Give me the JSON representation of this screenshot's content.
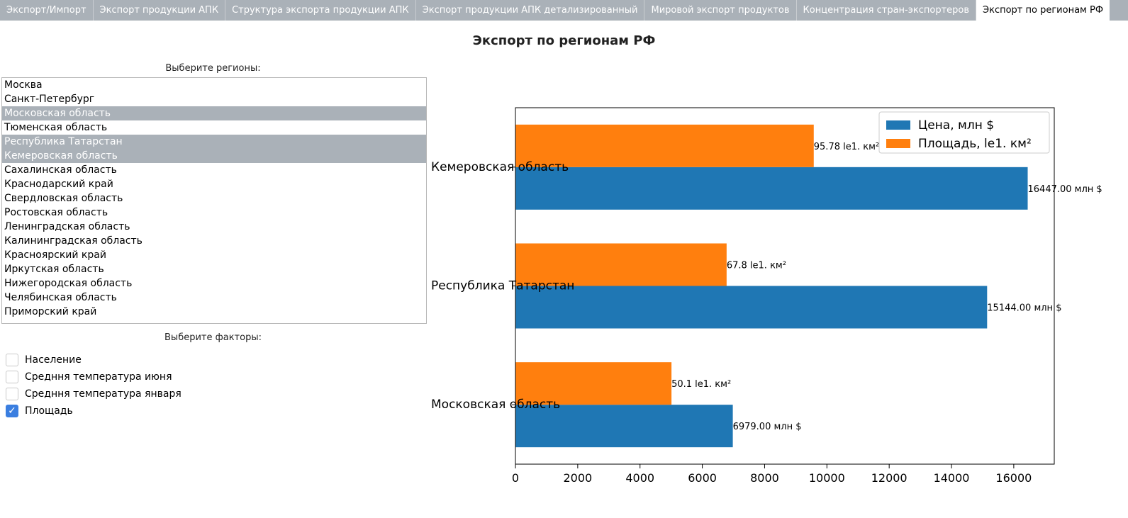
{
  "tabs": [
    {
      "label": "Экспорт/Импорт",
      "active": false
    },
    {
      "label": "Экспорт продукции АПК",
      "active": false
    },
    {
      "label": "Структура экспорта продукции АПК",
      "active": false
    },
    {
      "label": "Экспорт продукции АПК детализированный",
      "active": false
    },
    {
      "label": "Мировой экспорт продуктов",
      "active": false
    },
    {
      "label": "Концентрация стран-экспортеров",
      "active": false
    },
    {
      "label": "Экспорт по регионам РФ",
      "active": true
    }
  ],
  "page_title": "Экспорт по регионам РФ",
  "regions": {
    "label": "Выберите регионы:",
    "items": [
      {
        "label": "Москва",
        "selected": false
      },
      {
        "label": "Санкт-Петербург",
        "selected": false
      },
      {
        "label": "Московская область",
        "selected": true
      },
      {
        "label": "Тюменская область",
        "selected": false
      },
      {
        "label": "Республика Татарстан",
        "selected": true
      },
      {
        "label": "Кемеровская область",
        "selected": true
      },
      {
        "label": "Сахалинская область",
        "selected": false
      },
      {
        "label": "Краснодарский край",
        "selected": false
      },
      {
        "label": "Свердловская область",
        "selected": false
      },
      {
        "label": "Ростовская область",
        "selected": false
      },
      {
        "label": "Ленинградская область",
        "selected": false
      },
      {
        "label": "Калининградская область",
        "selected": false
      },
      {
        "label": "Красноярский край",
        "selected": false
      },
      {
        "label": "Иркутская область",
        "selected": false
      },
      {
        "label": "Нижегородская область",
        "selected": false
      },
      {
        "label": "Челябинская область",
        "selected": false
      },
      {
        "label": "Приморский край",
        "selected": false
      }
    ]
  },
  "factors": {
    "label": "Выберите факторы:",
    "items": [
      {
        "label": "Население",
        "checked": false
      },
      {
        "label": "Средння температура июня",
        "checked": false
      },
      {
        "label": "Средння температура января",
        "checked": false
      },
      {
        "label": "Площадь",
        "checked": true
      }
    ]
  },
  "colors": {
    "price": "#1f77b4",
    "area": "#ff7f0e",
    "selection": "#aab1b8",
    "checkbox": "#3a7ee0"
  },
  "chart_data": {
    "type": "bar",
    "orientation": "horizontal",
    "categories": [
      "Московская область",
      "Республика Татарстан",
      "Кемеровская область"
    ],
    "series": [
      {
        "name": "Цена, млн $",
        "values": [
          6979.0,
          15144.0,
          16447.0
        ],
        "labels": [
          "6979.00 млн $",
          "15144.00 млн $",
          "16447.00 млн $"
        ]
      },
      {
        "name": "Площадь, le1. км²",
        "values": [
          5010,
          6780,
          9578
        ],
        "labels": [
          "50.1  le1. км²",
          "67.8  le1. км²",
          "95.78  le1. км²"
        ]
      }
    ],
    "xlim": [
      0,
      17300
    ],
    "xticks": [
      0,
      2000,
      4000,
      6000,
      8000,
      10000,
      12000,
      14000,
      16000
    ],
    "legend_position": "top-right",
    "grid": false
  }
}
